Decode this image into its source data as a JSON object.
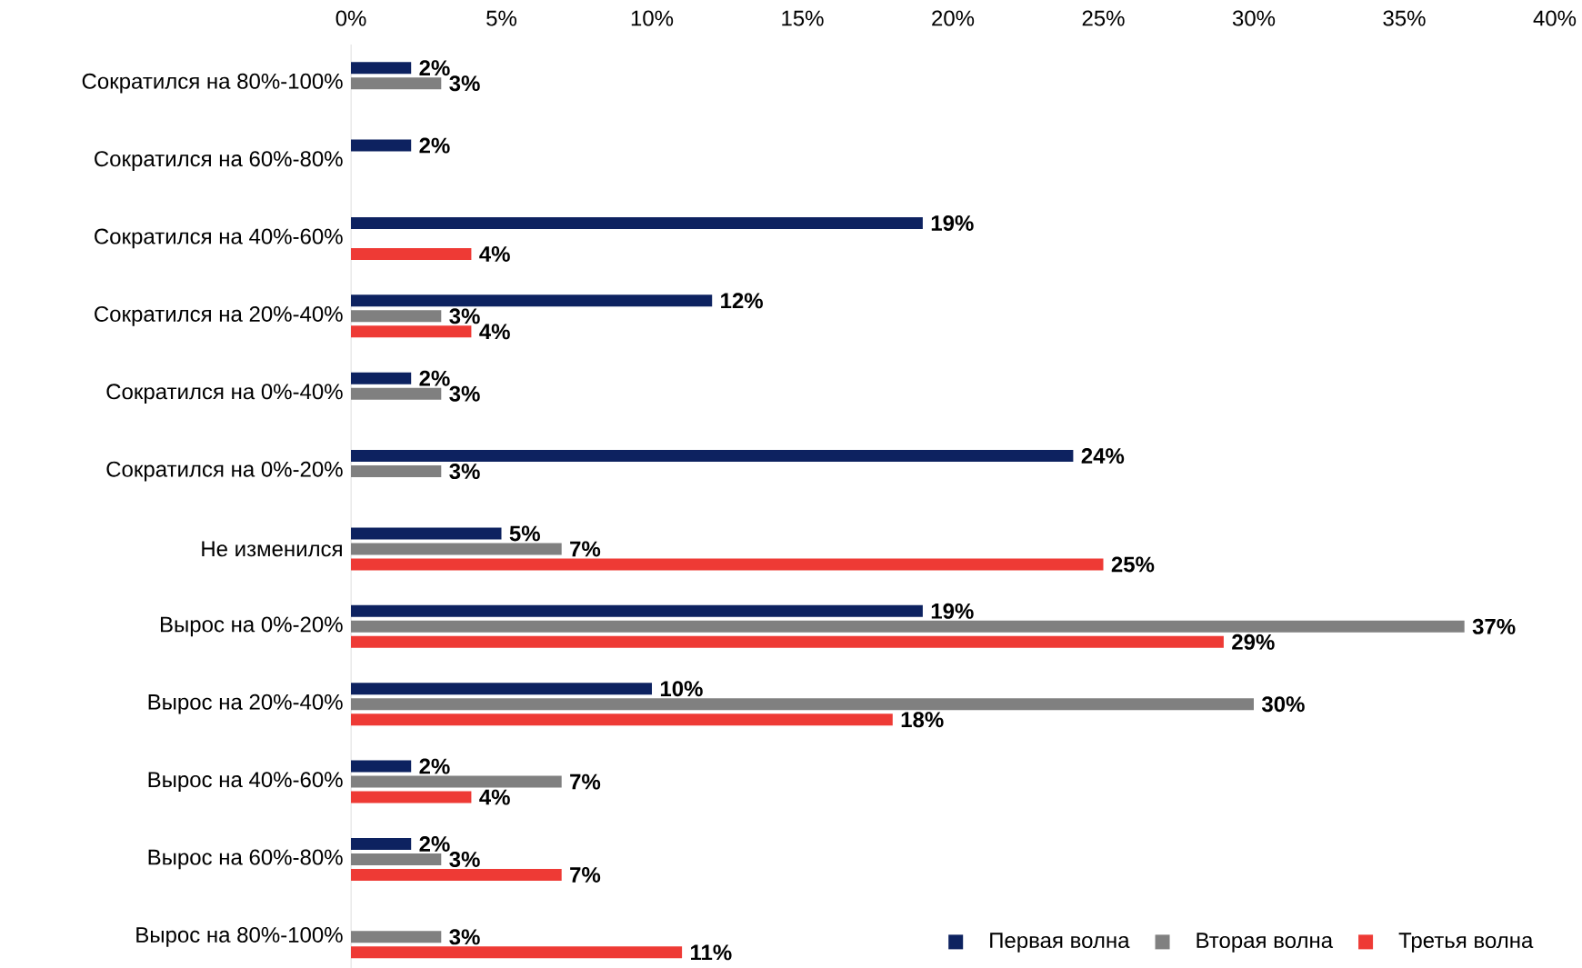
{
  "chart_data": {
    "type": "bar",
    "orientation": "horizontal",
    "categories": [
      "Сократился на 80%-100%",
      "Сократился на 60%-80%",
      "Сократился на 40%-60%",
      "Сократился на 20%-40%",
      "Сократился на 0%-40%",
      "Сократился на 0%-20%",
      "Не изменился",
      "Вырос на 0%-20%",
      "Вырос на 20%-40%",
      "Вырос на 40%-60%",
      "Вырос на 60%-80%",
      "Вырос на 80%-100%"
    ],
    "series": [
      {
        "name": "Первая волна",
        "color": "#0d2260",
        "values": [
          2,
          2,
          19,
          12,
          2,
          24,
          5,
          19,
          10,
          2,
          2,
          null
        ],
        "value_labels": [
          "2%",
          "2%",
          "19%",
          "12%",
          "2%",
          "24%",
          "5%",
          "19%",
          "10%",
          "2%",
          "2%",
          null
        ]
      },
      {
        "name": "Вторая волна",
        "color": "#808080",
        "values": [
          3,
          null,
          null,
          3,
          3,
          3,
          7,
          37,
          30,
          7,
          3,
          3
        ],
        "value_labels": [
          "3%",
          null,
          null,
          "3%",
          "3%",
          "3%",
          "7%",
          "37%",
          "30%",
          "7%",
          "3%",
          "3%"
        ]
      },
      {
        "name": "Третья волна",
        "color": "#ee3a35",
        "values": [
          null,
          null,
          4,
          4,
          null,
          null,
          25,
          29,
          18,
          4,
          7,
          11
        ],
        "value_labels": [
          null,
          null,
          "4%",
          "4%",
          null,
          null,
          "25%",
          "29%",
          "18%",
          "4%",
          "7%",
          "11%"
        ]
      }
    ],
    "xlim": [
      0,
      40
    ],
    "xticks": [
      {
        "value": 0,
        "label": "0%"
      },
      {
        "value": 5,
        "label": "5%"
      },
      {
        "value": 10,
        "label": "10%"
      },
      {
        "value": 15,
        "label": "15%"
      },
      {
        "value": 20,
        "label": "20%"
      },
      {
        "value": 25,
        "label": "25%"
      },
      {
        "value": 30,
        "label": "30%"
      },
      {
        "value": 35,
        "label": "35%"
      },
      {
        "value": 40,
        "label": "40%"
      }
    ],
    "grid": false,
    "legend": "bottom right"
  }
}
